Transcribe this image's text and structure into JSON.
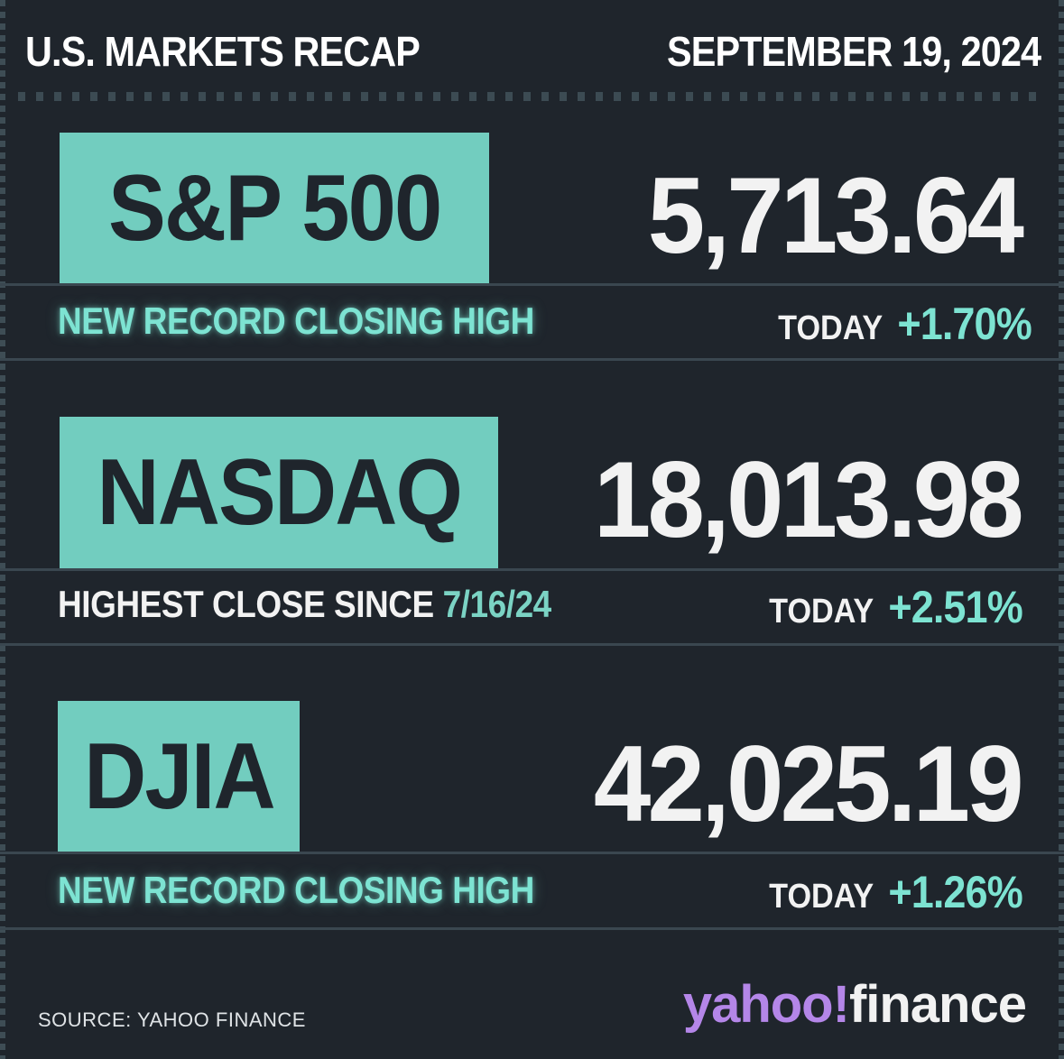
{
  "header": {
    "title": "U.S. MARKETS RECAP",
    "date": "SEPTEMBER 19, 2024"
  },
  "indices": [
    {
      "name": "S&P 500",
      "value": "5,713.64",
      "note": "NEW RECORD CLOSING HIGH",
      "today_label": "TODAY",
      "change": "+1.70%"
    },
    {
      "name": "NASDAQ",
      "value": "18,013.98",
      "note_prefix": "HIGHEST CLOSE SINCE",
      "note_date": "7/16/24",
      "today_label": "TODAY",
      "change": "+2.51%"
    },
    {
      "name": "DJIA",
      "value": "42,025.19",
      "note": "NEW RECORD CLOSING HIGH",
      "today_label": "TODAY",
      "change": "+1.26%"
    }
  ],
  "footer": {
    "source": "SOURCE: YAHOO FINANCE",
    "brand_yahoo": "yahoo!",
    "brand_finance": "finance"
  },
  "colors": {
    "background": "#1f252c",
    "accent_teal": "#72cdbf",
    "brand_purple": "#b486e8"
  }
}
